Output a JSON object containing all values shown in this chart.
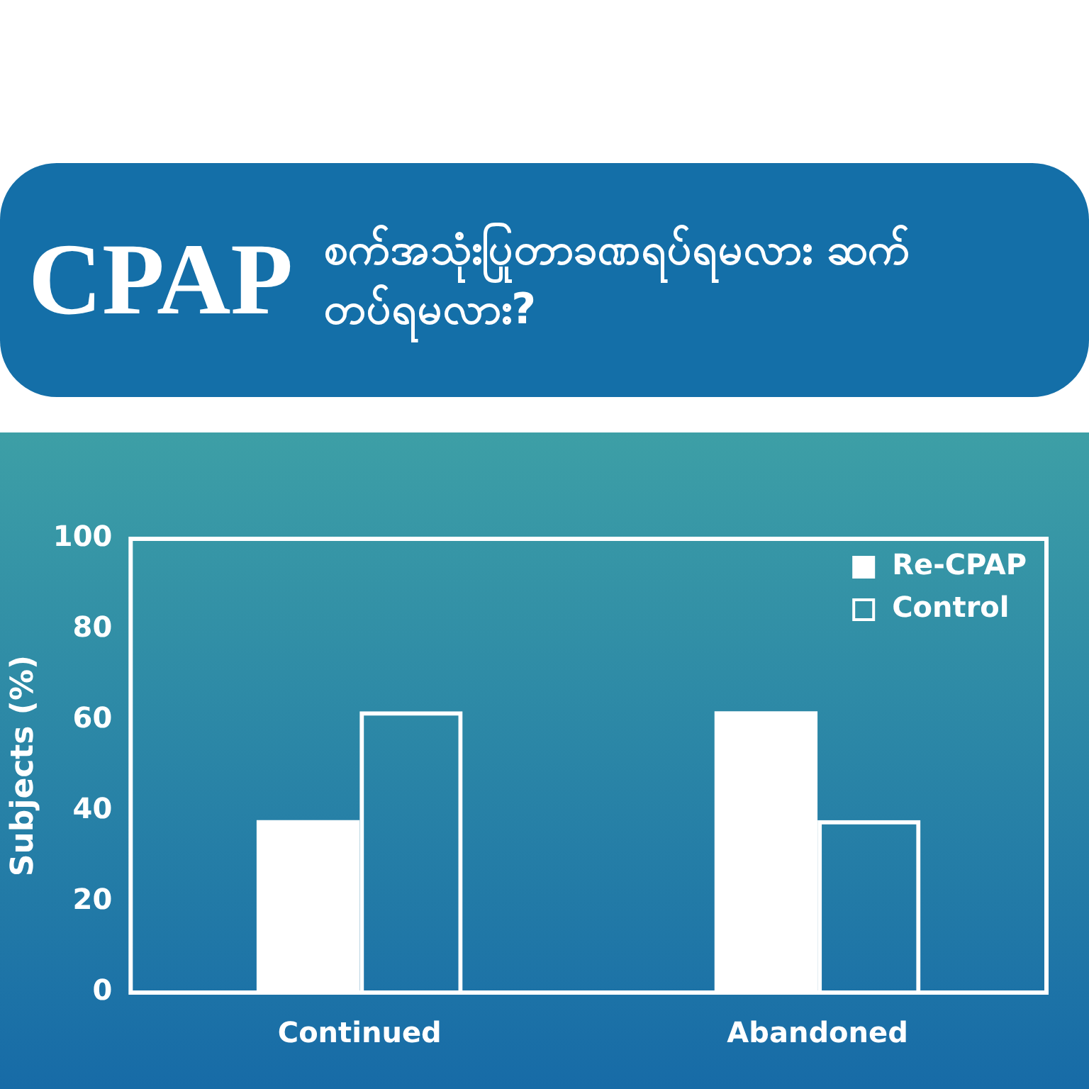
{
  "chart_data": {
    "type": "bar",
    "title": "CPAP",
    "subtitle": "စက်အသုံးပြုတာခဏရပ်ရမလား ဆက်တပ်ရမလား?",
    "ylabel": "Subjects (%)",
    "categories": [
      "Continued",
      "Abandoned"
    ],
    "series": [
      {
        "name": "Re-CPAP",
        "color": "#ffffff",
        "values": [
          38,
          62
        ]
      },
      {
        "name": "Control",
        "color": "#ffffff",
        "values": [
          62,
          38
        ]
      }
    ],
    "ylim": [
      0,
      100
    ],
    "yticks": [
      0,
      20,
      40,
      60,
      80,
      100
    ],
    "grid": false,
    "legend": "top right"
  }
}
